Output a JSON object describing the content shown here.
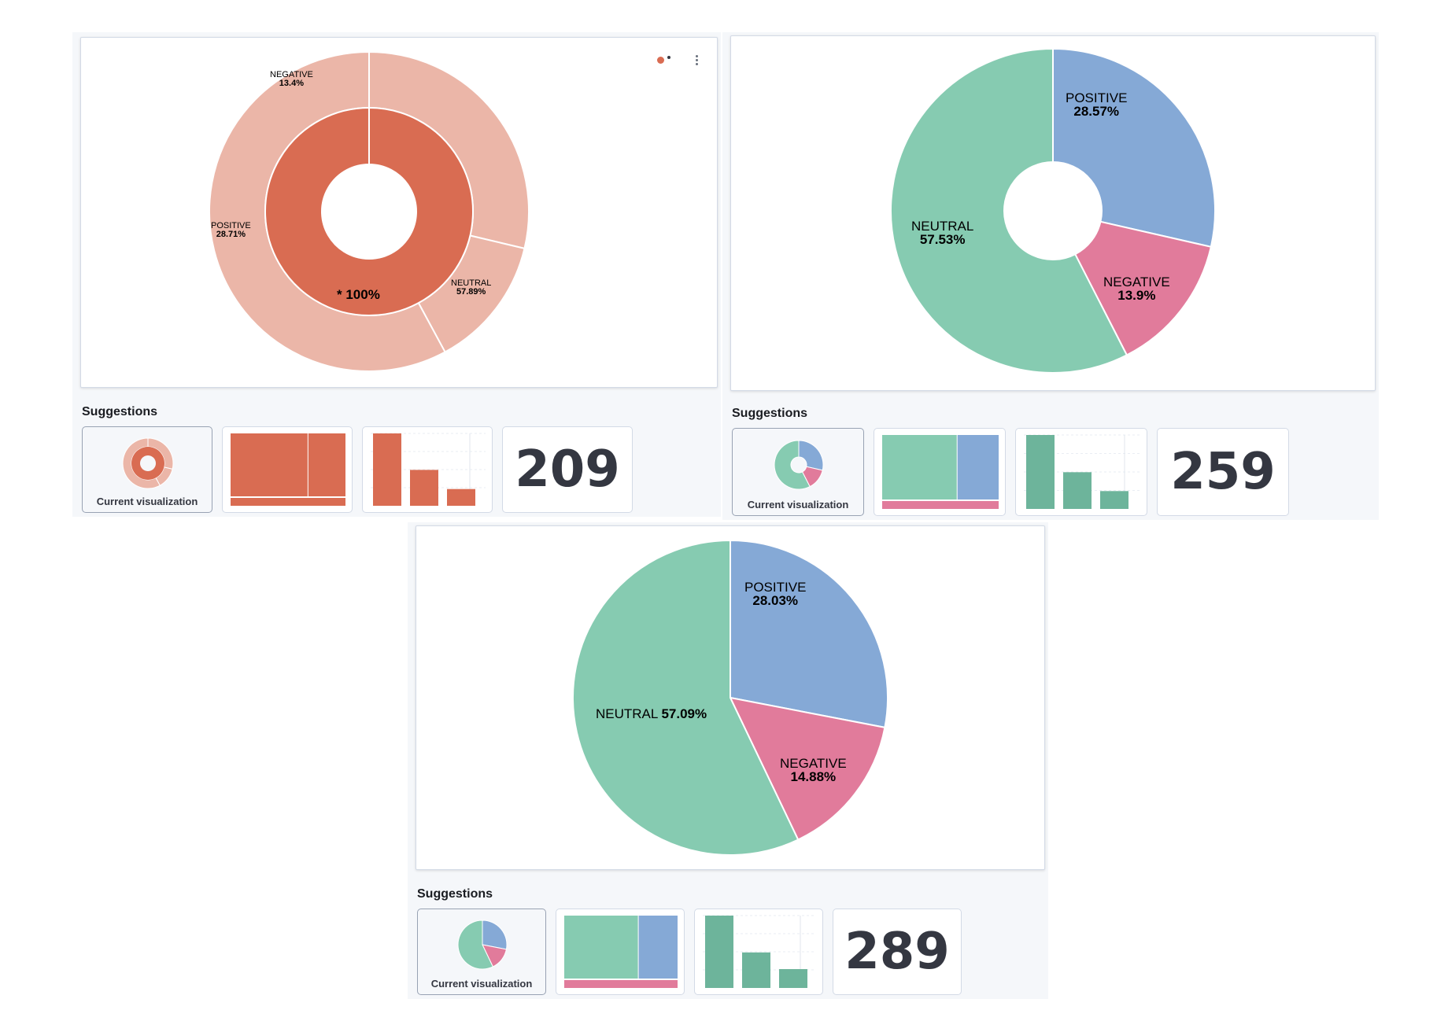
{
  "colors": {
    "donut_inner": "#d96c52",
    "donut_outer": "#ebb6a8",
    "positive": "#85a9d6",
    "negative": "#e17b9b",
    "neutral": "#86cbb1",
    "bar_green": "#6db49b",
    "bar_red": "#d96c52"
  },
  "chart_data": [
    {
      "type": "pie",
      "variant": "sunburst-donut",
      "inner": {
        "label": "* 100%",
        "value": 100
      },
      "slices": [
        {
          "name": "POSITIVE",
          "value": 28.71,
          "label": "28.71%"
        },
        {
          "name": "NEGATIVE",
          "value": 13.4,
          "label": "13.4%"
        },
        {
          "name": "NEUTRAL",
          "value": 57.89,
          "label": "57.89%"
        }
      ],
      "suggestions": {
        "title": "Suggestions",
        "current_label": "Current visualization",
        "metric": "209"
      }
    },
    {
      "type": "pie",
      "variant": "donut",
      "slices": [
        {
          "name": "POSITIVE",
          "value": 28.57,
          "label": "28.57%"
        },
        {
          "name": "NEGATIVE",
          "value": 13.9,
          "label": "13.9%"
        },
        {
          "name": "NEUTRAL",
          "value": 57.53,
          "label": "57.53%"
        }
      ],
      "suggestions": {
        "title": "Suggestions",
        "current_label": "Current visualization",
        "metric": "259"
      }
    },
    {
      "type": "pie",
      "variant": "pie",
      "slices": [
        {
          "name": "POSITIVE",
          "value": 28.03,
          "label": "28.03%"
        },
        {
          "name": "NEGATIVE",
          "value": 14.88,
          "label": "14.88%"
        },
        {
          "name": "NEUTRAL",
          "value": 57.09,
          "label": "57.09%"
        }
      ],
      "suggestions": {
        "title": "Suggestions",
        "current_label": "Current visualization",
        "metric": "289"
      }
    }
  ]
}
